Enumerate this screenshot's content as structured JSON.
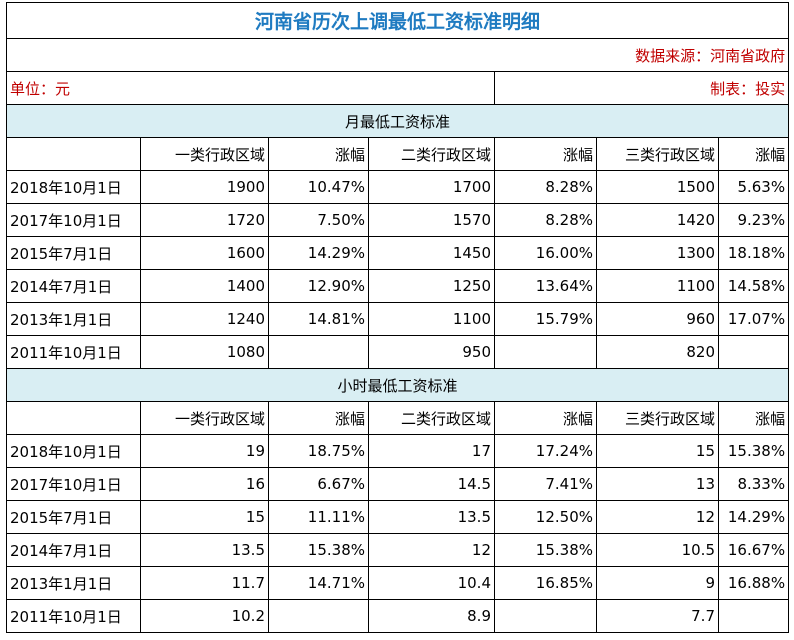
{
  "title": "河南省历次上调最低工资标准明细",
  "source": "数据来源：河南省政府",
  "unit": "单位：元",
  "maker": "制表：投实",
  "sections": [
    {
      "title": "月最低工资标准",
      "header": [
        "一类行政区域",
        "涨幅",
        "二类行政区域",
        "涨幅",
        "三类行政区域",
        "涨幅"
      ],
      "rows": [
        [
          "2018年10月1日",
          1900,
          "10.47%",
          1700,
          "8.28%",
          1500,
          "5.63%"
        ],
        [
          "2017年10月1日",
          1720,
          "7.50%",
          1570,
          "8.28%",
          1420,
          "9.23%"
        ],
        [
          "2015年7月1日",
          1600,
          "14.29%",
          1450,
          "16.00%",
          1300,
          "18.18%"
        ],
        [
          "2014年7月1日",
          1400,
          "12.90%",
          1250,
          "13.64%",
          1100,
          "14.58%"
        ],
        [
          "2013年1月1日",
          1240,
          "14.81%",
          1100,
          "15.79%",
          960,
          "17.07%"
        ],
        [
          "2011年10月1日",
          1080,
          null,
          950,
          null,
          820,
          null
        ]
      ]
    },
    {
      "title": "小时最低工资标准",
      "header": [
        "一类行政区域",
        "涨幅",
        "二类行政区域",
        "涨幅",
        "三类行政区域",
        "涨幅"
      ],
      "rows": [
        [
          "2018年10月1日",
          19,
          "18.75%",
          17,
          "17.24%",
          15,
          "15.38%"
        ],
        [
          "2017年10月1日",
          16,
          "6.67%",
          14.5,
          "7.41%",
          13,
          "8.33%"
        ],
        [
          "2015年7月1日",
          15,
          "11.11%",
          13.5,
          "12.50%",
          12,
          "14.29%"
        ],
        [
          "2014年7月1日",
          13.5,
          "15.38%",
          12,
          "15.38%",
          10.5,
          "16.67%"
        ],
        [
          "2013年1月1日",
          11.7,
          "14.71%",
          10.4,
          "16.85%",
          9,
          "16.88%"
        ],
        [
          "2011年10月1日",
          10.2,
          null,
          8.9,
          null,
          7.7,
          null
        ]
      ]
    }
  ]
}
